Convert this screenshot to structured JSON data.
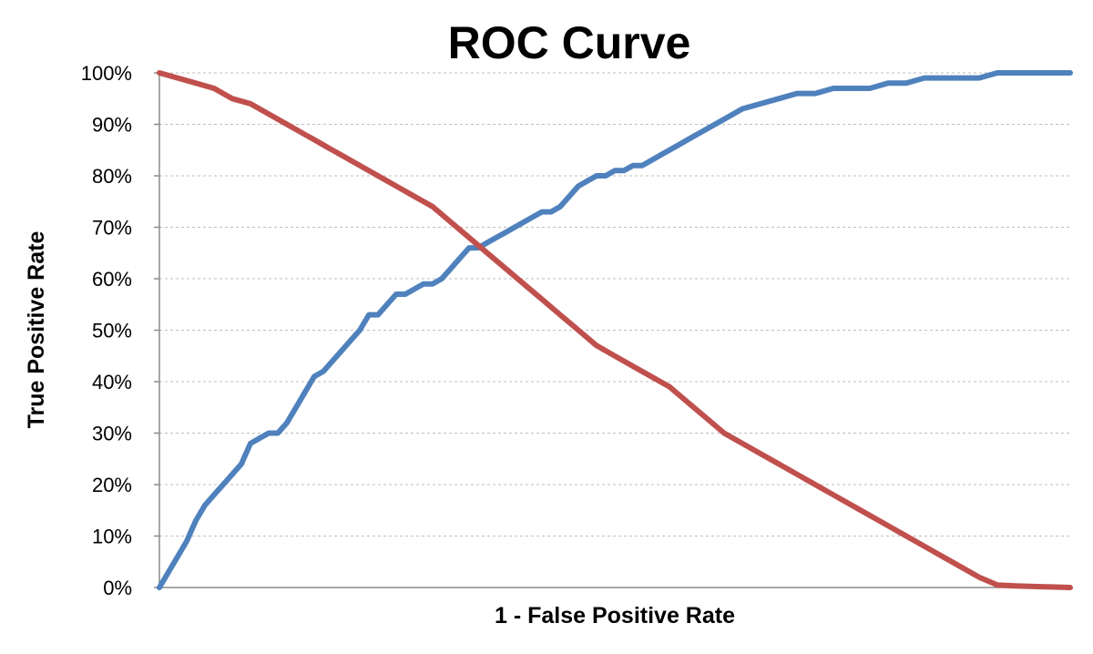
{
  "chart_data": {
    "type": "line",
    "title": "ROC Curve",
    "xlabel": "1 - False Positive Rate",
    "ylabel": "True Positive Rate",
    "xlim": [
      0,
      100
    ],
    "ylim": [
      0,
      100
    ],
    "y_ticks": [
      "0%",
      "10%",
      "20%",
      "30%",
      "40%",
      "50%",
      "60%",
      "70%",
      "80%",
      "90%",
      "100%"
    ],
    "y_tick_values": [
      0,
      10,
      20,
      30,
      40,
      50,
      60,
      70,
      80,
      90,
      100
    ],
    "grid": true,
    "legend": "none",
    "x_tick_labels": "none",
    "series": [
      {
        "color": "#4f81bd",
        "x": [
          0,
          2,
          3,
          4,
          5,
          6,
          7,
          8,
          9,
          10,
          11,
          12,
          13,
          14,
          15,
          16,
          17,
          18,
          19,
          20,
          21,
          22,
          23,
          24,
          25,
          26,
          27,
          28,
          29,
          30,
          31,
          32,
          33,
          34,
          35,
          36,
          37,
          38,
          39,
          40,
          41,
          42,
          43,
          44,
          45,
          46,
          47,
          48,
          49,
          50,
          51,
          52,
          53,
          54,
          55,
          56,
          57,
          58,
          60,
          62,
          64,
          66,
          68,
          70,
          72,
          74,
          76,
          78,
          80,
          82,
          84,
          86,
          88,
          90,
          92,
          94,
          96,
          98,
          100
        ],
        "y": [
          0,
          6,
          9,
          13,
          16,
          18,
          20,
          22,
          24,
          28,
          29,
          30,
          30,
          32,
          35,
          38,
          41,
          42,
          44,
          46,
          48,
          50,
          53,
          53,
          55,
          57,
          57,
          58,
          59,
          59,
          60,
          62,
          64,
          66,
          66,
          67,
          68,
          69,
          70,
          71,
          72,
          73,
          73,
          74,
          76,
          78,
          79,
          80,
          80,
          81,
          81,
          82,
          82,
          83,
          84,
          85,
          86,
          87,
          89,
          91,
          93,
          94,
          95,
          96,
          96,
          97,
          97,
          97,
          98,
          98,
          99,
          99,
          99,
          99,
          100,
          100,
          100,
          100,
          100
        ]
      },
      {
        "color": "#c0504d",
        "x": [
          0,
          2,
          4,
          6,
          8,
          10,
          12,
          14,
          16,
          17,
          18,
          19,
          20,
          22,
          24,
          26,
          28,
          30,
          32,
          34,
          36,
          38,
          40,
          42,
          44,
          46,
          48,
          50,
          52,
          54,
          56,
          58,
          60,
          62,
          64,
          66,
          68,
          70,
          72,
          74,
          76,
          78,
          80,
          82,
          84,
          86,
          88,
          90,
          92,
          94,
          96,
          98,
          100
        ],
        "y": [
          100,
          99,
          98,
          97,
          95,
          94,
          92,
          90,
          88,
          87,
          86,
          85,
          84,
          82,
          80,
          78,
          76,
          74,
          71,
          68,
          65,
          62,
          59,
          56,
          53,
          50,
          47,
          45,
          43,
          41,
          39,
          36,
          33,
          30,
          28,
          26,
          24,
          22,
          20,
          18,
          16,
          14,
          12,
          10,
          8,
          6,
          4,
          2,
          0.5,
          0.3,
          0.2,
          0.1,
          0
        ]
      }
    ]
  }
}
